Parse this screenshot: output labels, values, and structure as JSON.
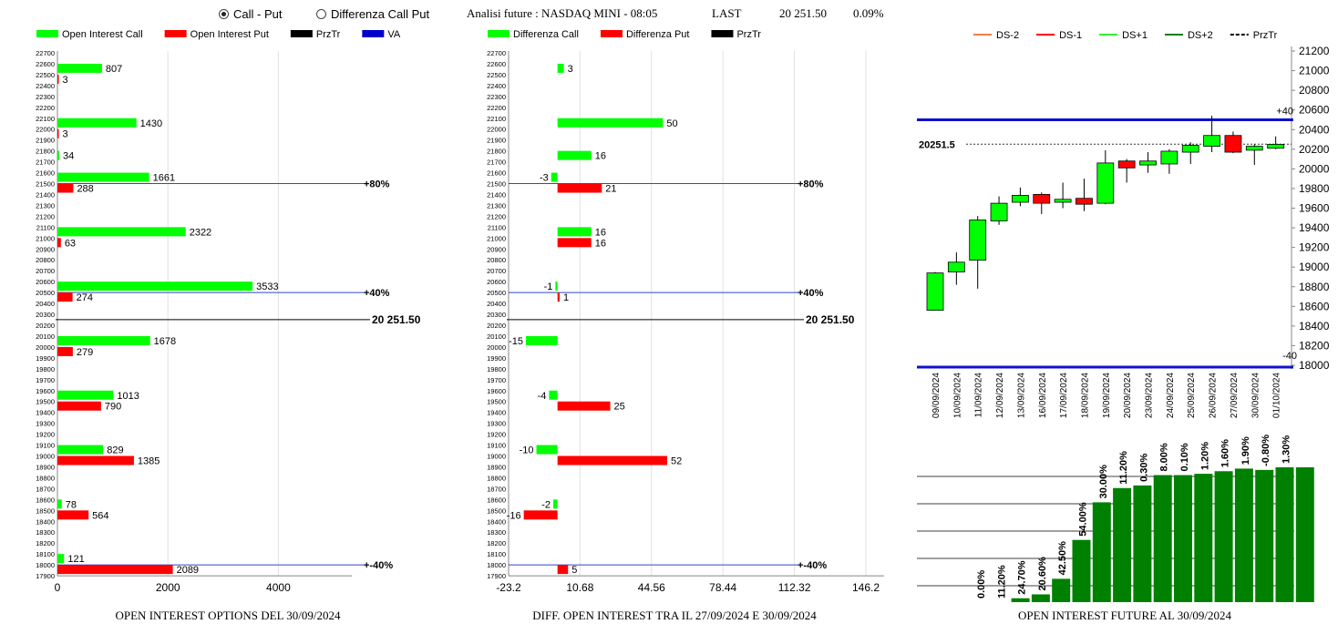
{
  "header": {
    "radio_call_put": "Call - Put",
    "radio_diff": "Differenza Call Put",
    "analisi": "Analisi future : NASDAQ MINI - 08:05",
    "last_label": "LAST",
    "last_value": "20 251.50",
    "change": "0.09%"
  },
  "colors": {
    "green": "#00ff00",
    "red": "#ff0000",
    "dark_green": "#008000",
    "blue": "#0000cc"
  },
  "strikes": [
    "22700",
    "22600",
    "22500",
    "22400",
    "22300",
    "22200",
    "22100",
    "22000",
    "21900",
    "21800",
    "21700",
    "21600",
    "21500",
    "21400",
    "21300",
    "21200",
    "21100",
    "21000",
    "20900",
    "20800",
    "20700",
    "20600",
    "20500",
    "20400",
    "20300",
    "20200",
    "20100",
    "20000",
    "19900",
    "19800",
    "19700",
    "19600",
    "19500",
    "19400",
    "19300",
    "19200",
    "19100",
    "19000",
    "18900",
    "18800",
    "18700",
    "18600",
    "18500",
    "18400",
    "18300",
    "18200",
    "18100",
    "18000",
    "17900"
  ],
  "price_line": {
    "value": 20251.5,
    "label": "20 251.50"
  },
  "chart_data": [
    {
      "type": "bar",
      "title": "OPEN INTEREST OPTIONS DEL 30/09/2024",
      "legend": [
        "Open Interest Call",
        "Open Interest Put",
        "PrzTr",
        "VA"
      ],
      "xticks": [
        "0",
        "2000",
        "4000"
      ],
      "xlim": [
        0,
        5000
      ],
      "call": [
        {
          "strike": 22600,
          "value": 807
        },
        {
          "strike": 22100,
          "value": 1430
        },
        {
          "strike": 21800,
          "value": 34
        },
        {
          "strike": 21600,
          "value": 1661
        },
        {
          "strike": 21100,
          "value": 2322
        },
        {
          "strike": 20600,
          "value": 3533
        },
        {
          "strike": 20100,
          "value": 1678
        },
        {
          "strike": 19600,
          "value": 1013
        },
        {
          "strike": 19100,
          "value": 829
        },
        {
          "strike": 18600,
          "value": 78
        },
        {
          "strike": 18100,
          "value": 121
        }
      ],
      "put": [
        {
          "strike": 22500,
          "value": 3
        },
        {
          "strike": 22000,
          "value": 3
        },
        {
          "strike": 21500,
          "value": 288
        },
        {
          "strike": 21000,
          "value": 63
        },
        {
          "strike": 20500,
          "value": 274
        },
        {
          "strike": 20000,
          "value": 279
        },
        {
          "strike": 19500,
          "value": 790
        },
        {
          "strike": 19000,
          "value": 1385
        },
        {
          "strike": 18500,
          "value": 564
        },
        {
          "strike": 18000,
          "value": 2089
        }
      ],
      "levels": [
        {
          "strike": 21500,
          "label": "+80%"
        },
        {
          "strike": 20500,
          "label": "+40%"
        },
        {
          "strike": 18000,
          "label": "-40%"
        }
      ]
    },
    {
      "type": "bar",
      "title": "DIFF. OPEN INTEREST TRA IL 27/09/2024 E 30/09/2024",
      "legend": [
        "Differenza Call",
        "Differenza Put",
        "PrzTr"
      ],
      "xticks": [
        "-23.2",
        "10.68",
        "44.56",
        "78.44",
        "112.32",
        "146.2"
      ],
      "xlim": [
        -23.2,
        146.2
      ],
      "call": [
        {
          "strike": 22600,
          "value": 3
        },
        {
          "strike": 22100,
          "value": 50
        },
        {
          "strike": 21800,
          "value": 16
        },
        {
          "strike": 21600,
          "value": -3
        },
        {
          "strike": 21100,
          "value": 16
        },
        {
          "strike": 20600,
          "value": -1
        },
        {
          "strike": 20100,
          "value": -15
        },
        {
          "strike": 19600,
          "value": -4
        },
        {
          "strike": 19100,
          "value": -10
        },
        {
          "strike": 18600,
          "value": -2
        }
      ],
      "put": [
        {
          "strike": 21500,
          "value": 21
        },
        {
          "strike": 21000,
          "value": 16
        },
        {
          "strike": 20500,
          "value": 1
        },
        {
          "strike": 19500,
          "value": 25
        },
        {
          "strike": 19000,
          "value": 52
        },
        {
          "strike": 18500,
          "value": -16
        },
        {
          "strike": 18000,
          "value": 5
        }
      ],
      "levels": [
        {
          "strike": 21500,
          "label": "+80%"
        },
        {
          "strike": 20500,
          "label": "+40%"
        },
        {
          "strike": 18000,
          "label": "-40%"
        }
      ]
    },
    {
      "type": "candlestick",
      "legend": [
        "DS-2",
        "DS-1",
        "DS+1",
        "DS+2",
        "PrzTr"
      ],
      "yticks": [
        "21200",
        "21000",
        "20800",
        "20600",
        "20400",
        "20200",
        "20000",
        "19800",
        "19600",
        "19400",
        "19200",
        "19000",
        "18800",
        "18600",
        "18400",
        "18200",
        "18000"
      ],
      "ylim": [
        18000,
        21200
      ],
      "price_label": "20251.5",
      "upper_label": "+40",
      "lower_label": "-40",
      "upper_level": 20500,
      "lower_level": 17990,
      "dates": [
        "09/09/2024",
        "10/09/2024",
        "11/09/2024",
        "12/09/2024",
        "13/09/2024",
        "16/09/2024",
        "17/09/2024",
        "18/09/2024",
        "19/09/2024",
        "20/09/2024",
        "23/09/2024",
        "24/09/2024",
        "25/09/2024",
        "26/09/2024",
        "27/09/2024",
        "30/09/2024",
        "01/10/2024"
      ],
      "candles": [
        {
          "o": 18560,
          "h": 18950,
          "l": 18560,
          "c": 18940
        },
        {
          "o": 18950,
          "h": 19150,
          "l": 18820,
          "c": 19050
        },
        {
          "o": 19070,
          "h": 19520,
          "l": 18780,
          "c": 19480
        },
        {
          "o": 19470,
          "h": 19720,
          "l": 19430,
          "c": 19650
        },
        {
          "o": 19660,
          "h": 19810,
          "l": 19620,
          "c": 19730
        },
        {
          "o": 19740,
          "h": 19760,
          "l": 19540,
          "c": 19650
        },
        {
          "o": 19660,
          "h": 19860,
          "l": 19600,
          "c": 19690
        },
        {
          "o": 19700,
          "h": 19900,
          "l": 19570,
          "c": 19640
        },
        {
          "o": 19650,
          "h": 20190,
          "l": 19640,
          "c": 20060
        },
        {
          "o": 20080,
          "h": 20100,
          "l": 19860,
          "c": 20010
        },
        {
          "o": 20040,
          "h": 20170,
          "l": 19960,
          "c": 20080
        },
        {
          "o": 20050,
          "h": 20200,
          "l": 19950,
          "c": 20180
        },
        {
          "o": 20170,
          "h": 20270,
          "l": 20050,
          "c": 20240
        },
        {
          "o": 20230,
          "h": 20540,
          "l": 20170,
          "c": 20340
        },
        {
          "o": 20340,
          "h": 20380,
          "l": 20160,
          "c": 20170
        },
        {
          "o": 20190,
          "h": 20250,
          "l": 20040,
          "c": 20230
        },
        {
          "o": 20210,
          "h": 20330,
          "l": 20200,
          "c": 20250
        }
      ]
    },
    {
      "type": "bar",
      "title": "OPEN INTEREST FUTURE AL 30/09/2024",
      "categories": [
        "09/09/2024",
        "10/09/2024",
        "11/09/2024",
        "12/09/2024",
        "13/09/2024",
        "16/09/2024",
        "17/09/2024",
        "18/09/2024",
        "19/09/2024",
        "20/09/2024",
        "23/09/2024",
        "24/09/2024",
        "25/09/2024",
        "26/09/2024",
        "27/09/2024",
        "30/09/2024",
        "01/10/2024"
      ],
      "values": [
        0,
        0,
        3,
        6,
        18,
        48,
        77,
        88,
        90,
        98,
        98,
        99,
        101,
        103,
        102,
        104,
        104
      ],
      "labels": [
        "0.00%",
        "11.20%",
        "24.70%",
        "20.60%",
        "42.50%",
        "54.00%",
        "30.00%",
        "11.20%",
        "0.30%",
        "8.00%",
        "0.10%",
        "1.20%",
        "1.60%",
        "1.90%",
        "-0.80%",
        "1.30%",
        ""
      ]
    }
  ]
}
